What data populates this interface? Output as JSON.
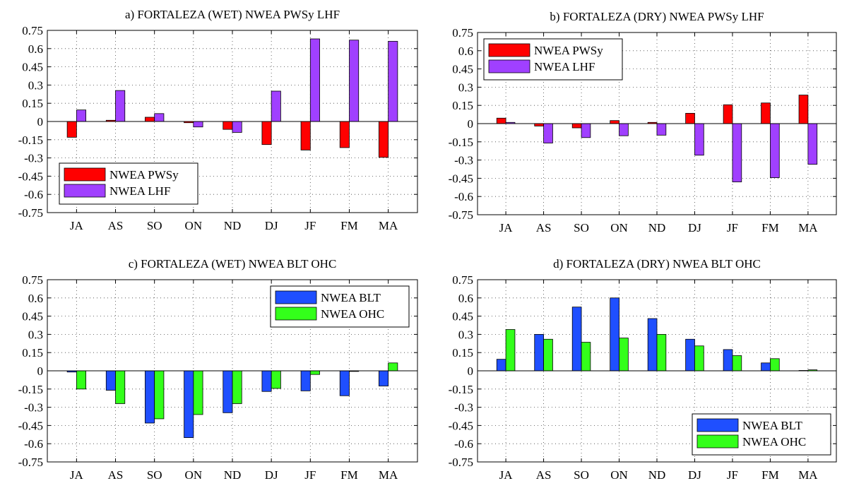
{
  "chart_data": [
    {
      "type": "bar",
      "title": "a) FORTALEZA (WET) NWEA PWSy LHF",
      "categories": [
        "JA",
        "AS",
        "SO",
        "ON",
        "ND",
        "DJ",
        "JF",
        "FM",
        "MA"
      ],
      "ylim": [
        -0.75,
        0.75
      ],
      "yticks": [
        "0.75",
        "0.6",
        "0.45",
        "0.3",
        "0.15",
        "0",
        "-0.15",
        "-0.3",
        "-0.45",
        "-0.6",
        "-0.75"
      ],
      "grid": true,
      "legend_position": "bottom-left",
      "series": [
        {
          "name": "NWEA PWSy",
          "color": "#ff0000",
          "values": [
            -0.13,
            0.01,
            0.035,
            -0.01,
            -0.065,
            -0.19,
            -0.235,
            -0.215,
            -0.295
          ]
        },
        {
          "name": "NWEA LHF",
          "color": "#a040ff",
          "values": [
            0.095,
            0.255,
            0.065,
            -0.045,
            -0.09,
            0.25,
            0.68,
            0.67,
            0.66
          ]
        }
      ]
    },
    {
      "type": "bar",
      "title": "b) FORTALEZA (DRY) NWEA PWSy LHF",
      "categories": [
        "JA",
        "AS",
        "SO",
        "ON",
        "ND",
        "DJ",
        "JF",
        "FM",
        "MA"
      ],
      "ylim": [
        -0.75,
        0.75
      ],
      "yticks": [
        "0.75",
        "0.6",
        "0.45",
        "0.3",
        "0.15",
        "0",
        "-0.15",
        "-0.3",
        "-0.45",
        "-0.6",
        "-0.75"
      ],
      "grid": true,
      "legend_position": "top-left",
      "series": [
        {
          "name": "NWEA PWSy",
          "color": "#ff0000",
          "values": [
            0.045,
            -0.02,
            -0.035,
            0.025,
            0.01,
            0.085,
            0.155,
            0.17,
            0.235
          ]
        },
        {
          "name": "NWEA LHF",
          "color": "#a040ff",
          "values": [
            0.01,
            -0.16,
            -0.115,
            -0.1,
            -0.095,
            -0.26,
            -0.48,
            -0.445,
            -0.335
          ]
        }
      ]
    },
    {
      "type": "bar",
      "title": "c) FORTALEZA (WET) NWEA BLT OHC",
      "categories": [
        "JA",
        "AS",
        "SO",
        "ON",
        "ND",
        "DJ",
        "JF",
        "FM",
        "MA"
      ],
      "ylim": [
        -0.75,
        0.75
      ],
      "yticks": [
        "0.75",
        "0.6",
        "0.45",
        "0.3",
        "0.15",
        "0",
        "-0.15",
        "-0.3",
        "-0.45",
        "-0.6",
        "-0.75"
      ],
      "grid": true,
      "legend_position": "top-right",
      "series": [
        {
          "name": "NWEA BLT",
          "color": "#1f4fff",
          "values": [
            -0.01,
            -0.16,
            -0.43,
            -0.55,
            -0.345,
            -0.17,
            -0.165,
            -0.205,
            -0.125
          ]
        },
        {
          "name": "NWEA OHC",
          "color": "#33ff1a",
          "values": [
            -0.15,
            -0.27,
            -0.395,
            -0.36,
            -0.27,
            -0.145,
            -0.03,
            -0.005,
            0.065
          ]
        }
      ]
    },
    {
      "type": "bar",
      "title": "d) FORTALEZA (DRY) NWEA BLT OHC",
      "categories": [
        "JA",
        "AS",
        "SO",
        "ON",
        "ND",
        "DJ",
        "JF",
        "FM",
        "MA"
      ],
      "ylim": [
        -0.75,
        0.75
      ],
      "yticks": [
        "0.75",
        "0.6",
        "0.45",
        "0.3",
        "0.15",
        "0",
        "-0.15",
        "-0.3",
        "-0.45",
        "-0.6",
        "-0.75"
      ],
      "grid": true,
      "legend_position": "bottom-right",
      "series": [
        {
          "name": "NWEA BLT",
          "color": "#1f4fff",
          "values": [
            0.095,
            0.3,
            0.525,
            0.6,
            0.43,
            0.26,
            0.175,
            0.065,
            0.003
          ]
        },
        {
          "name": "NWEA OHC",
          "color": "#33ff1a",
          "values": [
            0.34,
            0.26,
            0.235,
            0.27,
            0.3,
            0.205,
            0.125,
            0.1,
            0.008
          ]
        }
      ]
    }
  ]
}
